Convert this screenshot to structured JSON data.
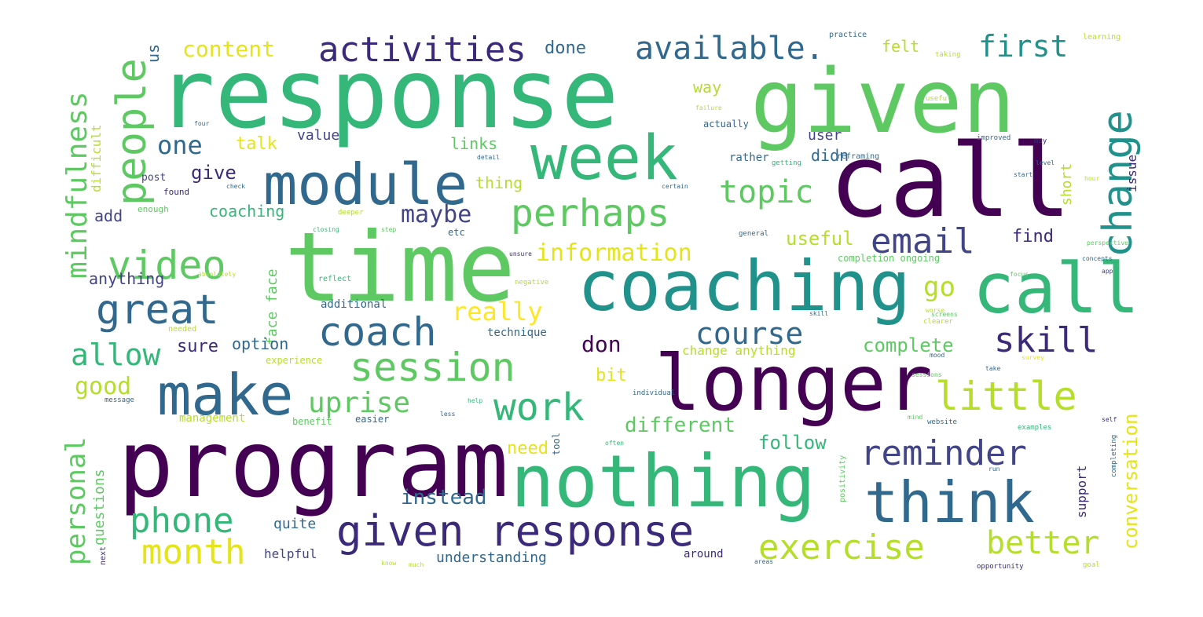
{
  "palette": {
    "dark_purple": "#440154",
    "indigo": "#3b2a7a",
    "slate_blue": "#414487",
    "steel_blue": "#31688e",
    "teal": "#21918c",
    "sea_green": "#35b779",
    "light_green": "#5ec962",
    "lime": "#b5de2b",
    "yellow": "#e5e419",
    "pale_yellow": "#fde725"
  },
  "words": [
    {
      "text": "response",
      "color": "#35b779"
    },
    {
      "text": "given",
      "color": "#5ec962"
    },
    {
      "text": "call",
      "color": "#440154"
    },
    {
      "text": "time",
      "color": "#5ec962"
    },
    {
      "text": "coaching",
      "color": "#21918c"
    },
    {
      "text": "call",
      "color": "#35b779"
    },
    {
      "text": "program",
      "color": "#440154"
    },
    {
      "text": "longer",
      "color": "#440154"
    },
    {
      "text": "nothing",
      "color": "#35b779"
    },
    {
      "text": "module",
      "color": "#31688e"
    },
    {
      "text": "week",
      "color": "#35b779"
    },
    {
      "text": "think",
      "color": "#31688e"
    },
    {
      "text": "make",
      "color": "#31688e"
    },
    {
      "text": "given response",
      "color": "#3b2a7a"
    },
    {
      "text": "activities",
      "color": "#3b2a7a"
    },
    {
      "text": "available.",
      "color": "#31688e"
    },
    {
      "text": "first",
      "color": "#21918c"
    },
    {
      "text": "change",
      "color": "#21918c"
    },
    {
      "text": "people",
      "color": "#5ec962"
    },
    {
      "text": "video",
      "color": "#5ec962"
    },
    {
      "text": "perhaps",
      "color": "#5ec962"
    },
    {
      "text": "topic",
      "color": "#5ec962"
    },
    {
      "text": "email",
      "color": "#414487"
    },
    {
      "text": "great",
      "color": "#31688e"
    },
    {
      "text": "coach",
      "color": "#31688e"
    },
    {
      "text": "course",
      "color": "#31688e"
    },
    {
      "text": "skill",
      "color": "#3b2a7a"
    },
    {
      "text": "session",
      "color": "#5ec962"
    },
    {
      "text": "little",
      "color": "#b5de2b"
    },
    {
      "text": "work",
      "color": "#35b779"
    },
    {
      "text": "reminder",
      "color": "#414487"
    },
    {
      "text": "phone",
      "color": "#35b779"
    },
    {
      "text": "exercise",
      "color": "#b5de2b"
    },
    {
      "text": "better",
      "color": "#b5de2b"
    },
    {
      "text": "month",
      "color": "#e5e419"
    },
    {
      "text": "allow",
      "color": "#35b779"
    },
    {
      "text": "uprise",
      "color": "#5ec962"
    },
    {
      "text": "mindfulness",
      "color": "#5ec962"
    },
    {
      "text": "one",
      "color": "#31688e"
    },
    {
      "text": "maybe",
      "color": "#414487"
    },
    {
      "text": "information",
      "color": "#e5e419"
    },
    {
      "text": "really",
      "color": "#fde725"
    },
    {
      "text": "go",
      "color": "#b5de2b"
    },
    {
      "text": "don",
      "color": "#440154"
    },
    {
      "text": "complete",
      "color": "#5ec962"
    },
    {
      "text": "good",
      "color": "#b5de2b"
    },
    {
      "text": "different",
      "color": "#5ec962"
    },
    {
      "text": "instead",
      "color": "#31688e"
    },
    {
      "text": "personal",
      "color": "#5ec962"
    },
    {
      "text": "conversation",
      "color": "#e5e419"
    },
    {
      "text": "content",
      "color": "#e5e419"
    },
    {
      "text": "done",
      "color": "#31688e"
    },
    {
      "text": "felt",
      "color": "#b5de2b"
    },
    {
      "text": "us",
      "color": "#31688e"
    },
    {
      "text": "way",
      "color": "#b5de2b"
    },
    {
      "text": "talk",
      "color": "#e5e419"
    },
    {
      "text": "value",
      "color": "#414487"
    },
    {
      "text": "user",
      "color": "#414487"
    },
    {
      "text": "didn",
      "color": "#31688e"
    },
    {
      "text": "links",
      "color": "#5ec962"
    },
    {
      "text": "give",
      "color": "#3b2a7a"
    },
    {
      "text": "thing",
      "color": "#b5de2b"
    },
    {
      "text": "add",
      "color": "#414487"
    },
    {
      "text": "coaching",
      "color": "#35b779"
    },
    {
      "text": "useful",
      "color": "#b5de2b"
    },
    {
      "text": "find",
      "color": "#3b2a7a"
    },
    {
      "text": "short",
      "color": "#b5de2b"
    },
    {
      "text": "issue",
      "color": "#3b2a7a"
    },
    {
      "text": "anything",
      "color": "#414487"
    },
    {
      "text": "face face",
      "color": "#5ec962"
    },
    {
      "text": "sure",
      "color": "#3b2a7a"
    },
    {
      "text": "option",
      "color": "#31688e"
    },
    {
      "text": "bit",
      "color": "#e5e419"
    },
    {
      "text": "change anything",
      "color": "#b5de2b"
    },
    {
      "text": "need",
      "color": "#e5e419"
    },
    {
      "text": "follow",
      "color": "#35b779"
    },
    {
      "text": "quite",
      "color": "#31688e"
    },
    {
      "text": "helpful",
      "color": "#414487"
    },
    {
      "text": "understanding",
      "color": "#31688e"
    },
    {
      "text": "around",
      "color": "#3b2a7a"
    },
    {
      "text": "questions",
      "color": "#5ec962"
    },
    {
      "text": "support",
      "color": "#3b2a7a"
    },
    {
      "text": "difficult",
      "color": "#b5de2b"
    },
    {
      "text": "technique",
      "color": "#31688e"
    },
    {
      "text": "additional",
      "color": "#31688e"
    },
    {
      "text": "experience",
      "color": "#b5de2b"
    },
    {
      "text": "management",
      "color": "#b5de2b"
    },
    {
      "text": "benefit",
      "color": "#5ec962"
    },
    {
      "text": "easier",
      "color": "#31688e"
    },
    {
      "text": "actually",
      "color": "#31688e"
    },
    {
      "text": "completion ongoing",
      "color": "#5ec962"
    },
    {
      "text": "practice",
      "color": "#31688e"
    },
    {
      "text": "learning",
      "color": "#b5de2b"
    },
    {
      "text": "taking",
      "color": "#b5de2b"
    },
    {
      "text": "rather",
      "color": "#31688e"
    },
    {
      "text": "getting",
      "color": "#35b779"
    },
    {
      "text": "reframing",
      "color": "#31688e"
    },
    {
      "text": "improved",
      "color": "#31688e"
    },
    {
      "text": "may",
      "color": "#3b2a7a"
    },
    {
      "text": "post",
      "color": "#414487"
    },
    {
      "text": "found",
      "color": "#3b2a7a"
    },
    {
      "text": "enough",
      "color": "#5ec962"
    },
    {
      "text": "deeper",
      "color": "#b5de2b"
    },
    {
      "text": "etc",
      "color": "#31688e"
    },
    {
      "text": "general",
      "color": "#31688e"
    },
    {
      "text": "reflect",
      "color": "#35b779"
    },
    {
      "text": "negative",
      "color": "#b5de2b"
    },
    {
      "text": "needed",
      "color": "#b5de2b"
    },
    {
      "text": "message",
      "color": "#31688e"
    },
    {
      "text": "individual",
      "color": "#31688e"
    },
    {
      "text": "website",
      "color": "#31688e"
    },
    {
      "text": "examples",
      "color": "#35b779"
    },
    {
      "text": "completing",
      "color": "#31688e"
    },
    {
      "text": "positivity",
      "color": "#5ec962"
    },
    {
      "text": "next",
      "color": "#3b2a7a"
    },
    {
      "text": "opportunity",
      "color": "#3b2a7a"
    },
    {
      "text": "goal",
      "color": "#b5de2b"
    },
    {
      "text": "tool",
      "color": "#31688e"
    },
    {
      "text": "clearer",
      "color": "#b5de2b"
    },
    {
      "text": "screens",
      "color": "#5ec962"
    },
    {
      "text": "useful",
      "color": "#b5de2b"
    },
    {
      "text": "failure",
      "color": "#b5de2b"
    },
    {
      "text": "detail",
      "color": "#31688e"
    },
    {
      "text": "certain",
      "color": "#31688e"
    },
    {
      "text": "sessions",
      "color": "#5ec962"
    },
    {
      "text": "perspective",
      "color": "#5ec962"
    },
    {
      "text": "concepts",
      "color": "#31688e"
    },
    {
      "text": "app",
      "color": "#414487"
    },
    {
      "text": "focus",
      "color": "#5ec962"
    },
    {
      "text": "worse",
      "color": "#b5de2b"
    },
    {
      "text": "take",
      "color": "#31688e"
    },
    {
      "text": "survey",
      "color": "#e5e419"
    },
    {
      "text": "help",
      "color": "#35b779"
    },
    {
      "text": "less",
      "color": "#31688e"
    },
    {
      "text": "run",
      "color": "#31688e"
    },
    {
      "text": "self",
      "color": "#3b2a7a"
    },
    {
      "text": "much",
      "color": "#b5de2b"
    },
    {
      "text": "areas",
      "color": "#31688e"
    },
    {
      "text": "know",
      "color": "#b5de2b"
    },
    {
      "text": "closing",
      "color": "#35b779"
    },
    {
      "text": "step",
      "color": "#5ec962"
    },
    {
      "text": "skill",
      "color": "#31688e"
    },
    {
      "text": "absolutely",
      "color": "#b5de2b"
    },
    {
      "text": "unsure",
      "color": "#3b2a7a"
    },
    {
      "text": "four",
      "color": "#31688e"
    },
    {
      "text": "often",
      "color": "#35b779"
    },
    {
      "text": "mind",
      "color": "#5ec962"
    },
    {
      "text": "mood",
      "color": "#31688e"
    },
    {
      "text": "start",
      "color": "#31688e"
    },
    {
      "text": "hour",
      "color": "#b5de2b"
    },
    {
      "text": "level",
      "color": "#31688e"
    },
    {
      "text": "check",
      "color": "#31688e"
    }
  ]
}
